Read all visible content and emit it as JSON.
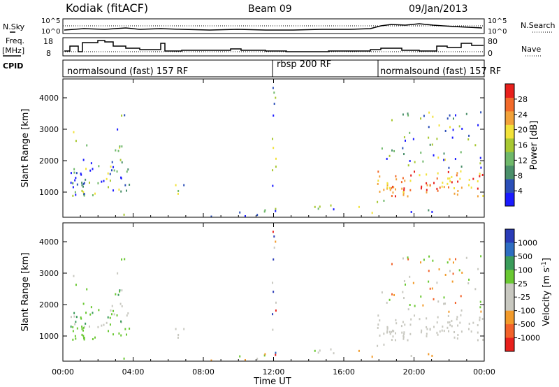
{
  "header": {
    "station": "Kodiak (fitACF)",
    "beam": "Beam 09",
    "date": "09/Jan/2013"
  },
  "strip_labels": {
    "nsky": "N.Sky",
    "nsearch": "N.Search",
    "freq_line1": "Freq.",
    "freq_line2": "[MHz]",
    "nave": "Nave",
    "cpid": "CPID",
    "nsky_ticks": [
      "10^5",
      "10^0"
    ],
    "nsearch_ticks": [
      "10^5",
      "10^0"
    ],
    "freq_ticks": [
      "18",
      "8"
    ],
    "nave_ticks": [
      "80",
      "0"
    ]
  },
  "cpid_segments": [
    {
      "label": "normalsound (fast) 157 RF"
    },
    {
      "label": "rbsp 200 RF"
    },
    {
      "label": "normalsound (fast) 157 RF"
    }
  ],
  "colors": {
    "power_scale": [
      "#1a1aff",
      "#2b4fb8",
      "#4a8f6a",
      "#6fb86a",
      "#a8c832",
      "#f2e23a",
      "#f2a23a",
      "#f26a2a",
      "#e8201c"
    ],
    "velocity_scale": [
      "#2a3cb8",
      "#2e6ec2",
      "#3a9c5a",
      "#6ac832",
      "#c8c8c0",
      "#c8c8c0",
      "#f29a2a",
      "#f2622a",
      "#e8201c"
    ]
  },
  "chart_data": [
    {
      "type": "heatmap",
      "panel": "power",
      "ylabel": "Slant Range [km]",
      "yticks": [
        "1000",
        "2000",
        "3000",
        "4000"
      ],
      "ylim": [
        200,
        4600
      ],
      "xlim_hours": [
        0,
        24
      ],
      "colorbar_label": "Power [dB]",
      "colorbar_ticks": [
        "4",
        "8",
        "12",
        "16",
        "20",
        "24",
        "28"
      ],
      "colorbar_range": [
        0,
        30
      ]
    },
    {
      "type": "heatmap",
      "panel": "velocity",
      "ylabel": "Slant Range [km]",
      "yticks": [
        "1000",
        "2000",
        "3000",
        "4000"
      ],
      "ylim": [
        200,
        4600
      ],
      "xlim_hours": [
        0,
        24
      ],
      "xlabel": "Time UT",
      "xticks": [
        "00:00",
        "04:00",
        "08:00",
        "12:00",
        "16:00",
        "20:00",
        "00:00"
      ],
      "colorbar_label": "Velocity [m s",
      "colorbar_label_sup": "-1",
      "colorbar_label_end": "]",
      "colorbar_ticks": [
        "1000",
        "500",
        "100",
        "25",
        "-25",
        "-100",
        "-500",
        "-1000"
      ]
    }
  ]
}
